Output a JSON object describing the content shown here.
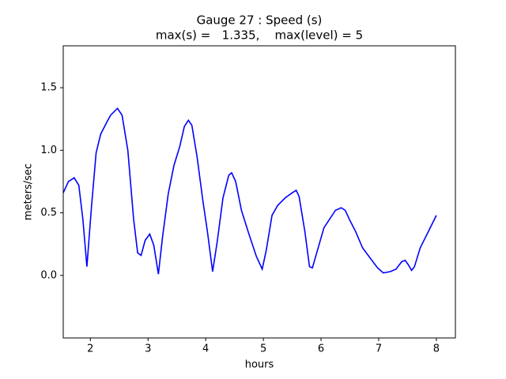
{
  "chart_data": {
    "type": "line",
    "title": "Gauge 27 : Speed (s)",
    "subtitle": "max(s) =   1.335,    max(level) = 5",
    "x_label": "hours",
    "y_label": "meters/sec",
    "xlim": [
      1.53,
      8.33
    ],
    "ylim": [
      -0.5,
      1.835
    ],
    "xticks": [
      2,
      3,
      4,
      5,
      6,
      7,
      8
    ],
    "yticks": [
      {
        "value": 0,
        "label": "0.0"
      },
      0.5,
      {
        "value": 1,
        "label": "1.0"
      },
      1.5
    ],
    "grid": false,
    "series": [
      {
        "color": "#0000ff",
        "x": [
          1.53,
          1.62,
          1.72,
          1.8,
          1.87,
          1.94,
          2.02,
          2.1,
          2.18,
          2.28,
          2.35,
          2.47,
          2.55,
          2.65,
          2.75,
          2.82,
          2.88,
          2.95,
          3.03,
          3.1,
          3.18,
          3.25,
          3.35,
          3.45,
          3.55,
          3.63,
          3.7,
          3.76,
          3.85,
          3.95,
          4.03,
          4.12,
          4.2,
          4.3,
          4.4,
          4.45,
          4.52,
          4.62,
          4.75,
          4.88,
          4.98,
          5.05,
          5.15,
          5.25,
          5.38,
          5.5,
          5.57,
          5.62,
          5.72,
          5.8,
          5.85,
          5.95,
          6.05,
          6.15,
          6.25,
          6.35,
          6.42,
          6.5,
          6.6,
          6.72,
          6.85,
          6.98,
          7.08,
          7.2,
          7.3,
          7.4,
          7.46,
          7.52,
          7.57,
          7.62,
          7.72,
          7.85,
          8.0
        ],
        "values": [
          0.66,
          0.75,
          0.78,
          0.72,
          0.45,
          0.07,
          0.55,
          0.98,
          1.13,
          1.22,
          1.28,
          1.335,
          1.28,
          1.0,
          0.45,
          0.18,
          0.16,
          0.28,
          0.33,
          0.24,
          0.01,
          0.3,
          0.65,
          0.88,
          1.03,
          1.19,
          1.24,
          1.2,
          0.95,
          0.6,
          0.35,
          0.03,
          0.27,
          0.62,
          0.8,
          0.82,
          0.75,
          0.52,
          0.33,
          0.15,
          0.05,
          0.2,
          0.48,
          0.56,
          0.62,
          0.66,
          0.68,
          0.63,
          0.35,
          0.07,
          0.06,
          0.22,
          0.38,
          0.45,
          0.52,
          0.54,
          0.52,
          0.44,
          0.35,
          0.22,
          0.14,
          0.06,
          0.02,
          0.03,
          0.05,
          0.11,
          0.12,
          0.08,
          0.04,
          0.07,
          0.22,
          0.34,
          0.48
        ]
      }
    ]
  }
}
